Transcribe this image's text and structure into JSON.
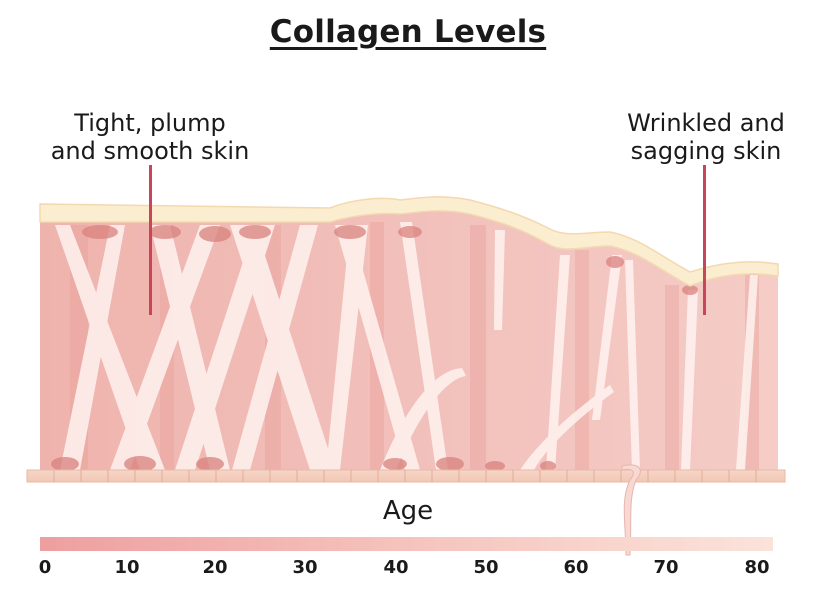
{
  "title": "Collagen Levels",
  "labels": {
    "young": [
      "Tight, plump",
      "and smooth skin"
    ],
    "aged": [
      "Wrinkled and",
      "sagging skin"
    ]
  },
  "axis": {
    "label": "Age",
    "ticks": [
      "0",
      "10",
      "20",
      "30",
      "40",
      "50",
      "60",
      "70",
      "80"
    ],
    "gradient_colors": [
      "#ee9fa0",
      "#fbe3da"
    ]
  },
  "colors": {
    "skin_body": "#f2c0bb",
    "epidermis": "#fbeed0",
    "fiber": "#fff5f3",
    "pointer": "#c9455a"
  }
}
